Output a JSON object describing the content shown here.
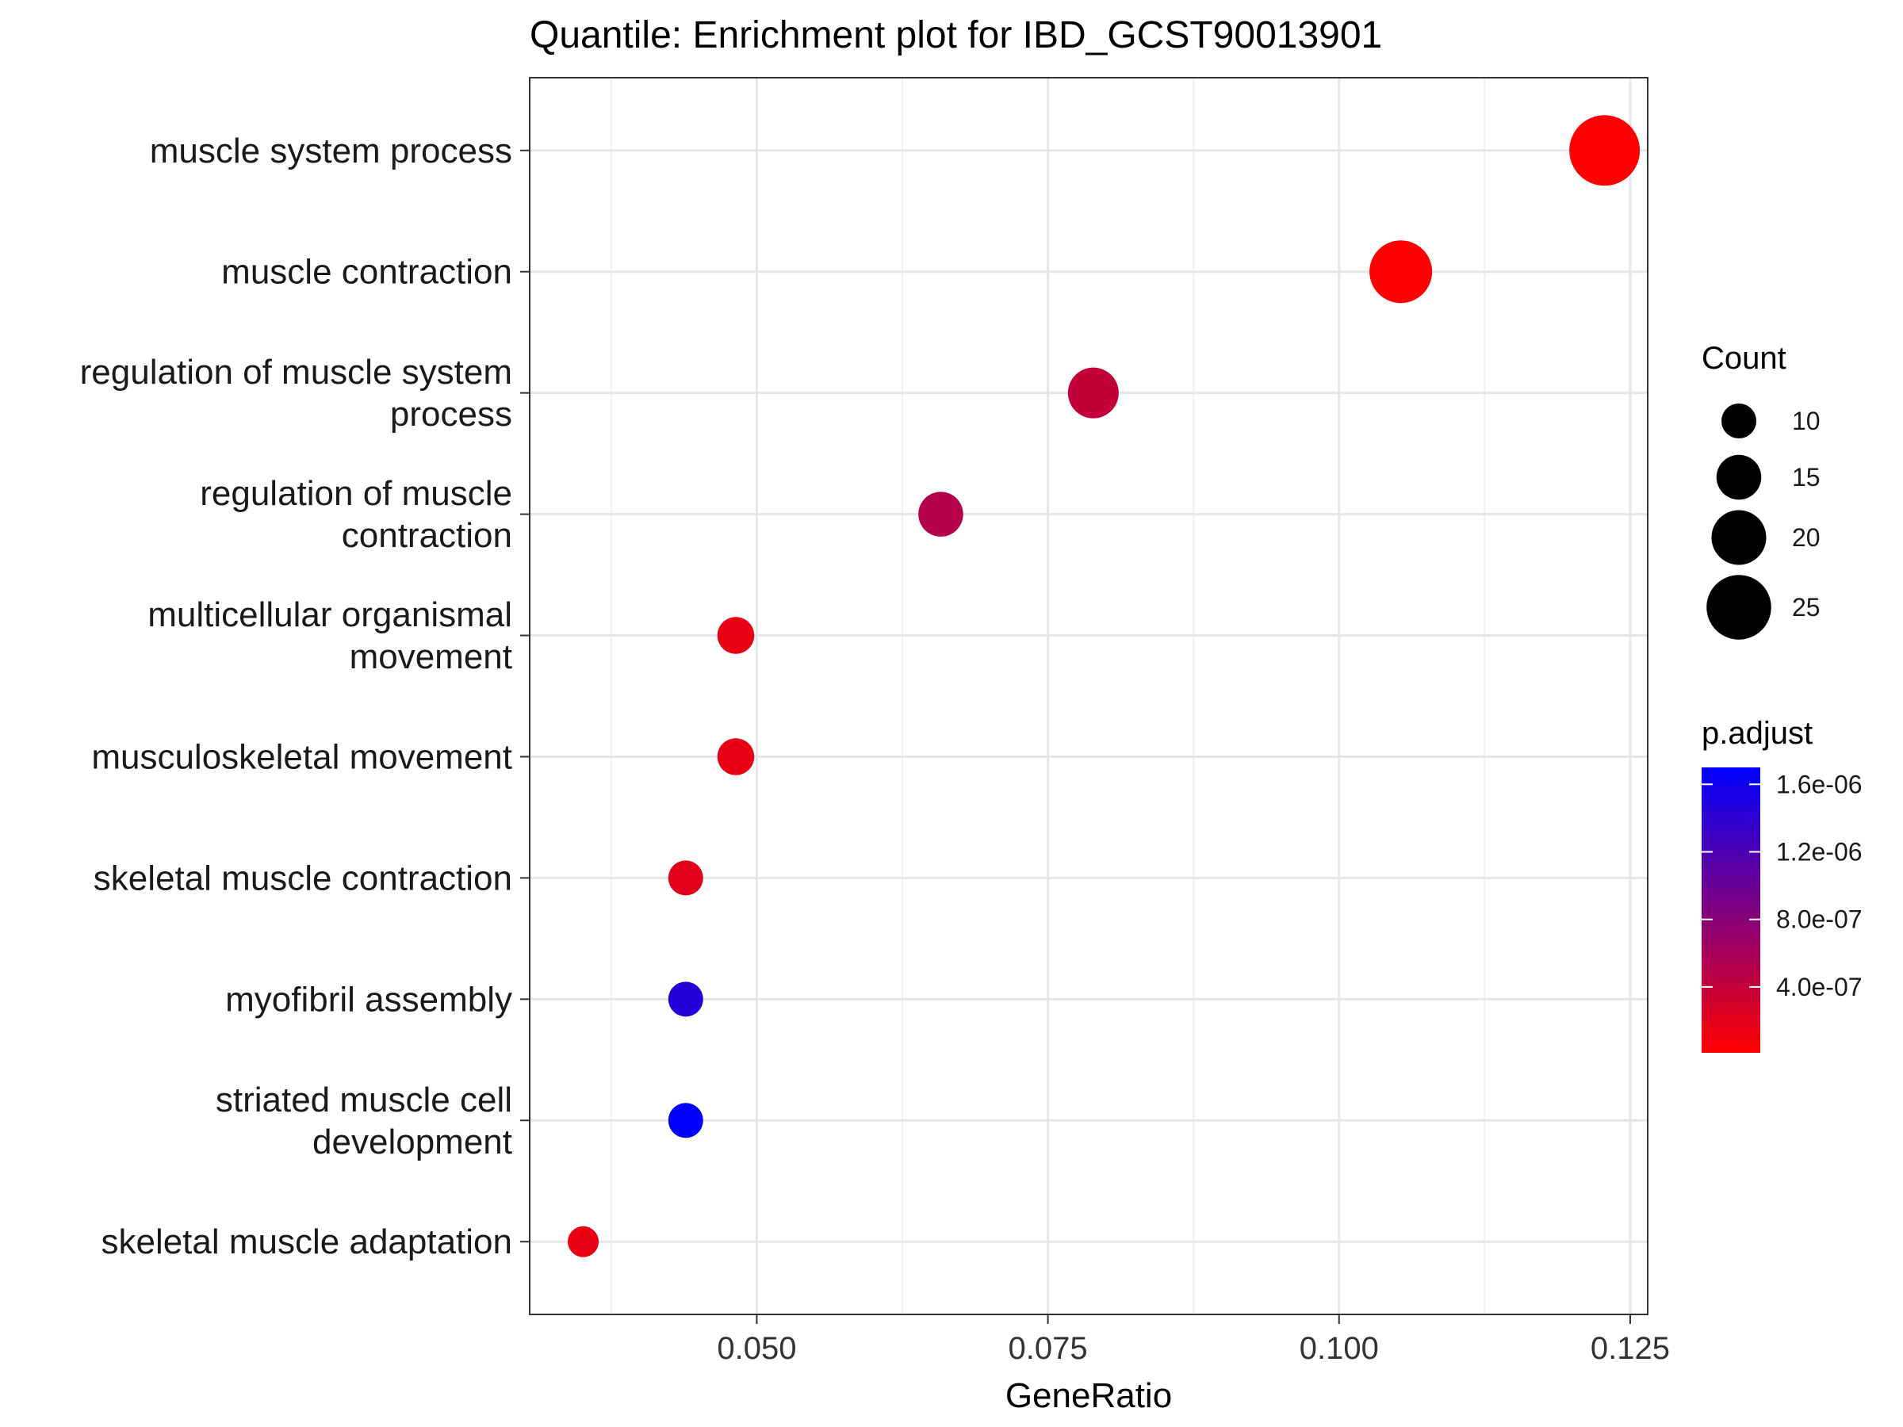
{
  "chart_data": {
    "type": "scatter",
    "title": "Quantile: Enrichment plot for IBD_GCST90013901",
    "xlabel": "GeneRatio",
    "ylabel": "",
    "xlim": [
      0.0305,
      0.1265
    ],
    "xticks": [
      "0.050",
      "0.075",
      "0.100",
      "0.125"
    ],
    "xtick_values": [
      0.05,
      0.075,
      0.1,
      0.125
    ],
    "grid": true,
    "categories": [
      [
        "muscle system process"
      ],
      [
        "muscle contraction"
      ],
      [
        "regulation of muscle system",
        "process"
      ],
      [
        "regulation of muscle",
        "contraction"
      ],
      [
        "multicellular organismal",
        "movement"
      ],
      [
        "musculoskeletal movement"
      ],
      [
        "skeletal muscle contraction"
      ],
      [
        "myofibril assembly"
      ],
      [
        "striated muscle cell",
        "development"
      ],
      [
        "skeletal muscle adaptation"
      ]
    ],
    "points": [
      {
        "x": 0.1228,
        "count": 28,
        "p_adjust": 1e-08
      },
      {
        "x": 0.1053,
        "count": 24,
        "p_adjust": 2e-08
      },
      {
        "x": 0.0789,
        "count": 18,
        "p_adjust": 4e-07
      },
      {
        "x": 0.0658,
        "count": 15,
        "p_adjust": 5e-07
      },
      {
        "x": 0.0482,
        "count": 11,
        "p_adjust": 1.5e-07
      },
      {
        "x": 0.0482,
        "count": 11,
        "p_adjust": 1.5e-07
      },
      {
        "x": 0.0439,
        "count": 10,
        "p_adjust": 2e-07
      },
      {
        "x": 0.0439,
        "count": 10,
        "p_adjust": 1.45e-06
      },
      {
        "x": 0.0439,
        "count": 10,
        "p_adjust": 1.7e-06
      },
      {
        "x": 0.0351,
        "count": 8,
        "p_adjust": 1.5e-07
      }
    ],
    "size_legend": {
      "title": "Count",
      "labels": [
        "10",
        "15",
        "20",
        "25"
      ],
      "values": [
        10,
        15,
        20,
        25
      ]
    },
    "color_legend": {
      "title": "p.adjust",
      "labels": [
        "1.6e-06",
        "1.2e-06",
        "8.0e-07",
        "4.0e-07"
      ],
      "values": [
        1.6e-06,
        1.2e-06,
        8e-07,
        4e-07
      ],
      "range": [
        1e-08,
        1.7e-06
      ],
      "low_color": "#ff0000",
      "high_color": "#0000ff"
    },
    "legend_position": "right"
  }
}
